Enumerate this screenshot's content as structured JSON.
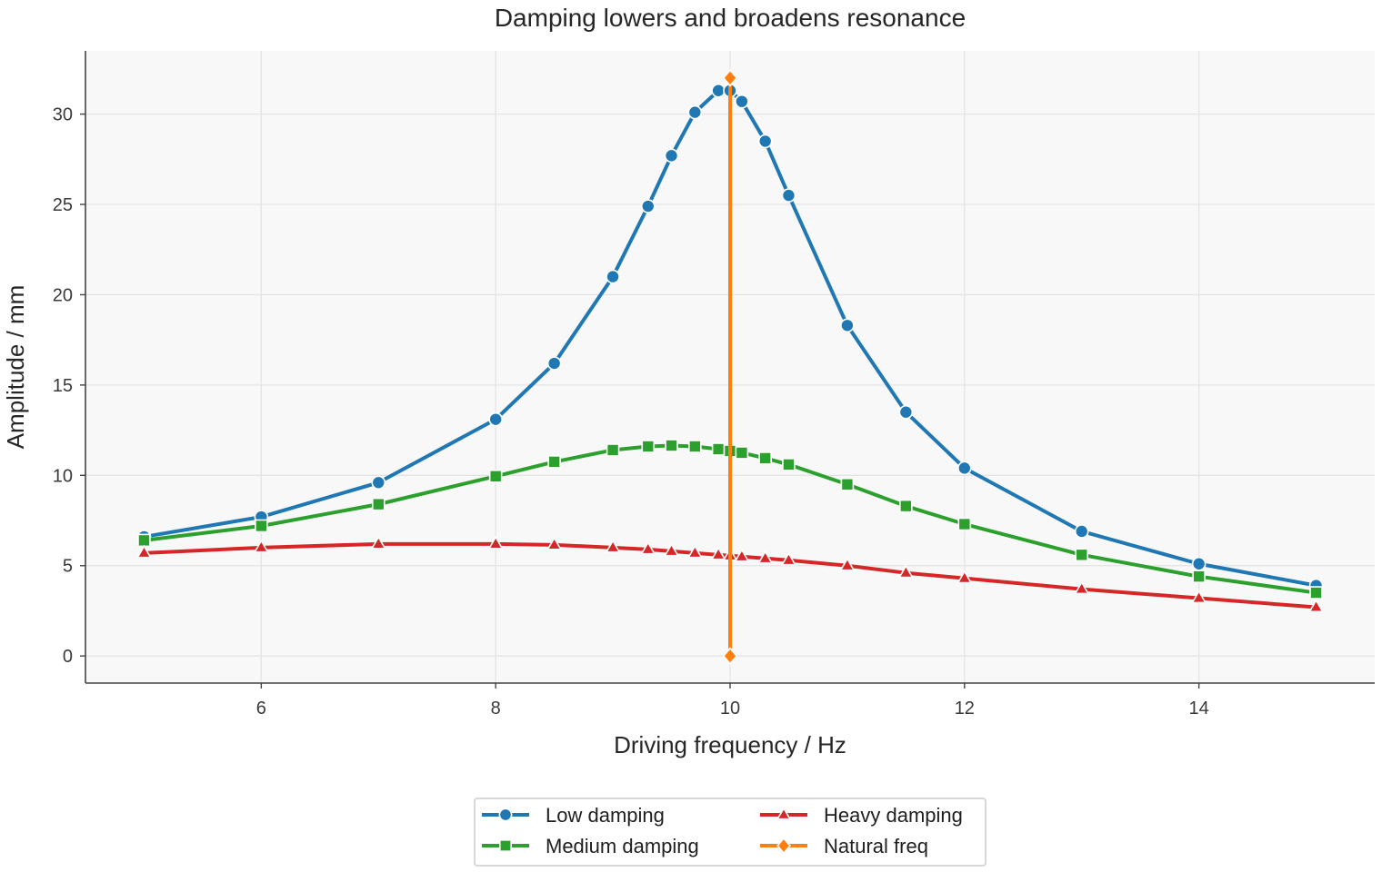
{
  "chart_data": {
    "type": "line",
    "title": "Damping lowers and broadens resonance",
    "xlabel": "Driving frequency / Hz",
    "ylabel": "Amplitude / mm",
    "xlim": [
      4.5,
      15.5
    ],
    "ylim": [
      -1.5,
      33.5
    ],
    "x_ticks": [
      6,
      8,
      10,
      12,
      14
    ],
    "y_ticks": [
      0,
      5,
      10,
      15,
      20,
      25,
      30
    ],
    "grid": true,
    "legend_position": "bottom-center",
    "series": [
      {
        "name": "Low damping",
        "color": "#1f77b4",
        "marker": "circle",
        "x": [
          5,
          6,
          7,
          8,
          8.5,
          9,
          9.3,
          9.5,
          9.7,
          9.9,
          10,
          10.1,
          10.3,
          10.5,
          11,
          11.5,
          12,
          13,
          14,
          15
        ],
        "values": [
          6.6,
          7.7,
          9.6,
          13.1,
          16.2,
          21.0,
          24.9,
          27.7,
          30.1,
          31.3,
          31.3,
          30.7,
          28.5,
          25.5,
          18.3,
          13.5,
          10.4,
          6.9,
          5.1,
          3.9
        ]
      },
      {
        "name": "Medium damping",
        "color": "#2ca02c",
        "marker": "square",
        "x": [
          5,
          6,
          7,
          8,
          8.5,
          9,
          9.3,
          9.5,
          9.7,
          9.9,
          10,
          10.1,
          10.3,
          10.5,
          11,
          11.5,
          12,
          13,
          14,
          15
        ],
        "values": [
          6.4,
          7.2,
          8.4,
          9.95,
          10.75,
          11.4,
          11.6,
          11.65,
          11.6,
          11.45,
          11.35,
          11.25,
          10.95,
          10.6,
          9.5,
          8.3,
          7.3,
          5.6,
          4.4,
          3.5
        ]
      },
      {
        "name": "Heavy damping",
        "color": "#d62728",
        "marker": "triangle",
        "x": [
          5,
          6,
          7,
          8,
          8.5,
          9,
          9.3,
          9.5,
          9.7,
          9.9,
          10,
          10.1,
          10.3,
          10.5,
          11,
          11.5,
          12,
          13,
          14,
          15
        ],
        "values": [
          5.7,
          6.0,
          6.2,
          6.2,
          6.15,
          6.0,
          5.9,
          5.8,
          5.7,
          5.6,
          5.55,
          5.5,
          5.4,
          5.3,
          5.0,
          4.6,
          4.3,
          3.7,
          3.2,
          2.7
        ]
      },
      {
        "name": "Natural freq",
        "color": "#ff7f0e",
        "marker": "diamond",
        "x": [
          10,
          10
        ],
        "values": [
          0,
          32
        ]
      }
    ]
  }
}
